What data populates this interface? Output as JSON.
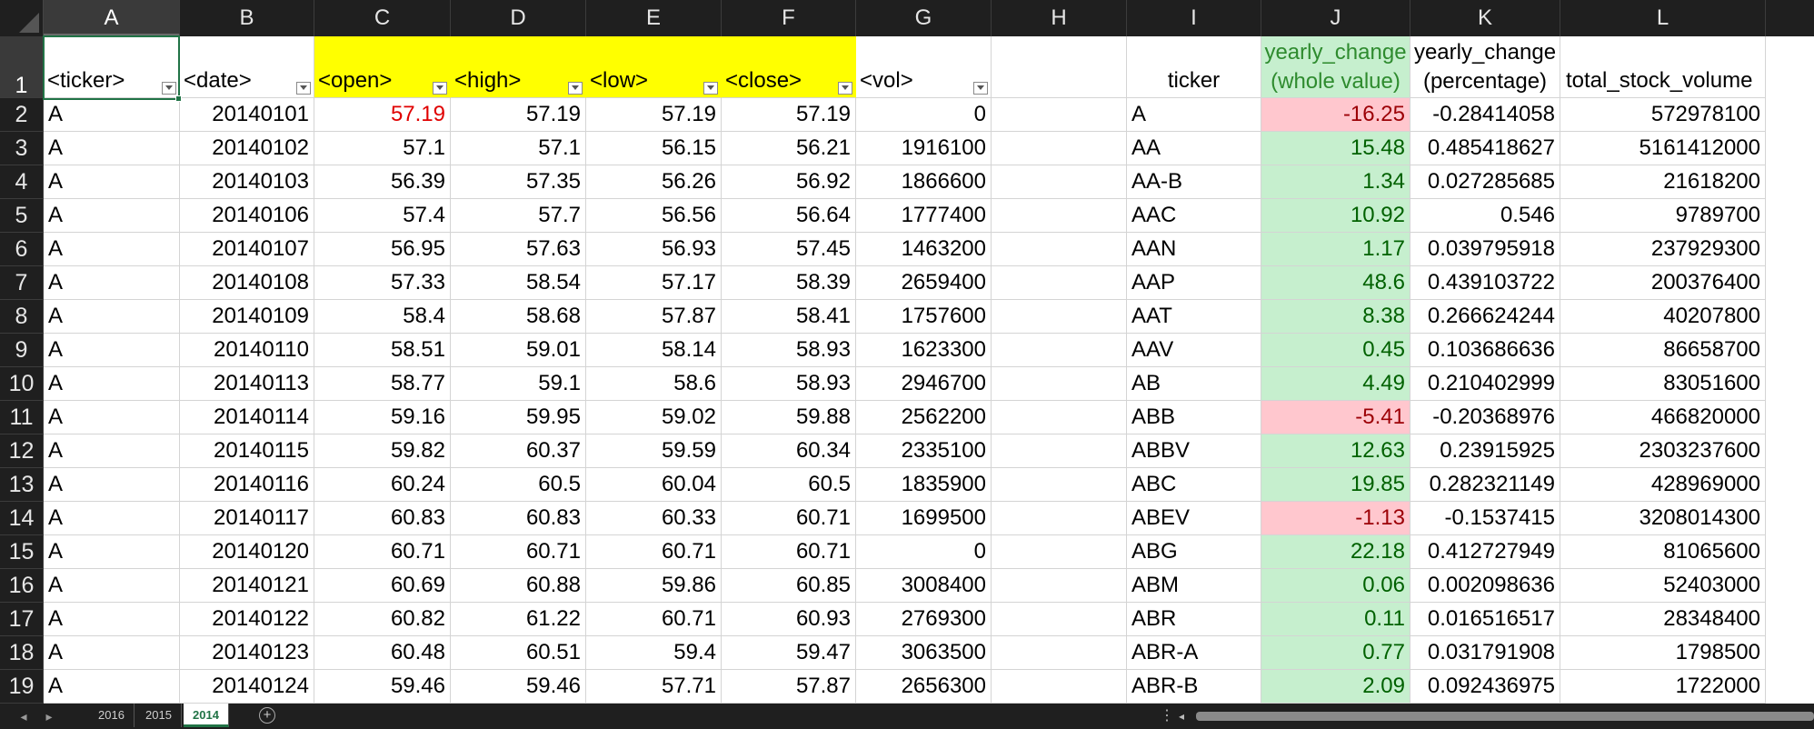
{
  "columns": [
    "A",
    "B",
    "C",
    "D",
    "E",
    "F",
    "G",
    "H",
    "I",
    "J",
    "K",
    "L"
  ],
  "active_column": "A",
  "active_row": "1",
  "headers": {
    "A": "<ticker>",
    "B": "<date>",
    "C": "<open>",
    "D": "<high>",
    "E": "<low>",
    "F": "<close>",
    "G": "<vol>",
    "H": "",
    "I": "ticker",
    "J_line1": "yearly_change",
    "J_line2": "(whole value)",
    "K_line1": "yearly_change",
    "K_line2": "(percentage)",
    "L": "total_stock_volume"
  },
  "colors": {
    "header_highlight": "#ffff00",
    "positive_fill": "#c6efce",
    "positive_text": "#006100",
    "negative_fill": "#ffc7ce",
    "negative_text": "#9c0006",
    "accent": "#217346",
    "red_value": "#e00000"
  },
  "rows": [
    {
      "num": "2",
      "a": "A",
      "b": "20140101",
      "c": "57.19",
      "d": "57.19",
      "e": "57.19",
      "f": "57.19",
      "g": "0",
      "i": "A",
      "j": "-16.25",
      "k": "-0.28414058",
      "l": "572978100"
    },
    {
      "num": "3",
      "a": "A",
      "b": "20140102",
      "c": "57.1",
      "d": "57.1",
      "e": "56.15",
      "f": "56.21",
      "g": "1916100",
      "i": "AA",
      "j": "15.48",
      "k": "0.485418627",
      "l": "5161412000"
    },
    {
      "num": "4",
      "a": "A",
      "b": "20140103",
      "c": "56.39",
      "d": "57.35",
      "e": "56.26",
      "f": "56.92",
      "g": "1866600",
      "i": "AA-B",
      "j": "1.34",
      "k": "0.027285685",
      "l": "21618200"
    },
    {
      "num": "5",
      "a": "A",
      "b": "20140106",
      "c": "57.4",
      "d": "57.7",
      "e": "56.56",
      "f": "56.64",
      "g": "1777400",
      "i": "AAC",
      "j": "10.92",
      "k": "0.546",
      "l": "9789700"
    },
    {
      "num": "6",
      "a": "A",
      "b": "20140107",
      "c": "56.95",
      "d": "57.63",
      "e": "56.93",
      "f": "57.45",
      "g": "1463200",
      "i": "AAN",
      "j": "1.17",
      "k": "0.039795918",
      "l": "237929300"
    },
    {
      "num": "7",
      "a": "A",
      "b": "20140108",
      "c": "57.33",
      "d": "58.54",
      "e": "57.17",
      "f": "58.39",
      "g": "2659400",
      "i": "AAP",
      "j": "48.6",
      "k": "0.439103722",
      "l": "200376400"
    },
    {
      "num": "8",
      "a": "A",
      "b": "20140109",
      "c": "58.4",
      "d": "58.68",
      "e": "57.87",
      "f": "58.41",
      "g": "1757600",
      "i": "AAT",
      "j": "8.38",
      "k": "0.266624244",
      "l": "40207800"
    },
    {
      "num": "9",
      "a": "A",
      "b": "20140110",
      "c": "58.51",
      "d": "59.01",
      "e": "58.14",
      "f": "58.93",
      "g": "1623300",
      "i": "AAV",
      "j": "0.45",
      "k": "0.103686636",
      "l": "86658700"
    },
    {
      "num": "10",
      "a": "A",
      "b": "20140113",
      "c": "58.77",
      "d": "59.1",
      "e": "58.6",
      "f": "58.93",
      "g": "2946700",
      "i": "AB",
      "j": "4.49",
      "k": "0.210402999",
      "l": "83051600"
    },
    {
      "num": "11",
      "a": "A",
      "b": "20140114",
      "c": "59.16",
      "d": "59.95",
      "e": "59.02",
      "f": "59.88",
      "g": "2562200",
      "i": "ABB",
      "j": "-5.41",
      "k": "-0.20368976",
      "l": "466820000"
    },
    {
      "num": "12",
      "a": "A",
      "b": "20140115",
      "c": "59.82",
      "d": "60.37",
      "e": "59.59",
      "f": "60.34",
      "g": "2335100",
      "i": "ABBV",
      "j": "12.63",
      "k": "0.23915925",
      "l": "2303237600"
    },
    {
      "num": "13",
      "a": "A",
      "b": "20140116",
      "c": "60.24",
      "d": "60.5",
      "e": "60.04",
      "f": "60.5",
      "g": "1835900",
      "i": "ABC",
      "j": "19.85",
      "k": "0.282321149",
      "l": "428969000"
    },
    {
      "num": "14",
      "a": "A",
      "b": "20140117",
      "c": "60.83",
      "d": "60.83",
      "e": "60.33",
      "f": "60.71",
      "g": "1699500",
      "i": "ABEV",
      "j": "-1.13",
      "k": "-0.1537415",
      "l": "3208014300"
    },
    {
      "num": "15",
      "a": "A",
      "b": "20140120",
      "c": "60.71",
      "d": "60.71",
      "e": "60.71",
      "f": "60.71",
      "g": "0",
      "i": "ABG",
      "j": "22.18",
      "k": "0.412727949",
      "l": "81065600"
    },
    {
      "num": "16",
      "a": "A",
      "b": "20140121",
      "c": "60.69",
      "d": "60.88",
      "e": "59.86",
      "f": "60.85",
      "g": "3008400",
      "i": "ABM",
      "j": "0.06",
      "k": "0.002098636",
      "l": "52403000"
    },
    {
      "num": "17",
      "a": "A",
      "b": "20140122",
      "c": "60.82",
      "d": "61.22",
      "e": "60.71",
      "f": "60.93",
      "g": "2769300",
      "i": "ABR",
      "j": "0.11",
      "k": "0.016516517",
      "l": "28348400"
    },
    {
      "num": "18",
      "a": "A",
      "b": "20140123",
      "c": "60.48",
      "d": "60.51",
      "e": "59.4",
      "f": "59.47",
      "g": "3063500",
      "i": "ABR-A",
      "j": "0.77",
      "k": "0.031791908",
      "l": "1798500"
    },
    {
      "num": "19",
      "a": "A",
      "b": "20140124",
      "c": "59.46",
      "d": "59.46",
      "e": "57.71",
      "f": "57.87",
      "g": "2656300",
      "i": "ABR-B",
      "j": "2.09",
      "k": "0.092436975",
      "l": "1722000"
    }
  ],
  "sheet_tabs": [
    "2016",
    "2015",
    "2014"
  ],
  "active_sheet": "2014",
  "icons": {
    "prev_sheet": "◂",
    "next_sheet": "▸",
    "add_sheet": "+",
    "options": "⋮",
    "scroll_left": "◂"
  }
}
